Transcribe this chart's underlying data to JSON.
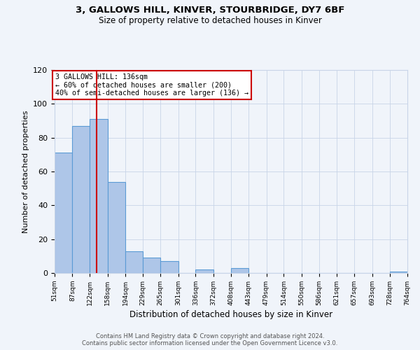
{
  "title": "3, GALLOWS HILL, KINVER, STOURBRIDGE, DY7 6BF",
  "subtitle": "Size of property relative to detached houses in Kinver",
  "xlabel": "Distribution of detached houses by size in Kinver",
  "ylabel": "Number of detached properties",
  "bin_edges": [
    51,
    87,
    122,
    158,
    194,
    229,
    265,
    301,
    336,
    372,
    408,
    443,
    479,
    514,
    550,
    586,
    621,
    657,
    693,
    728,
    764
  ],
  "bar_heights": [
    71,
    87,
    91,
    54,
    13,
    9,
    7,
    0,
    2,
    0,
    3,
    0,
    0,
    0,
    0,
    0,
    0,
    0,
    0,
    1
  ],
  "bar_color": "#aec6e8",
  "bar_edgecolor": "#5b9bd5",
  "bar_linewidth": 0.8,
  "property_line_x": 136,
  "property_line_color": "#cc0000",
  "ylim": [
    0,
    120
  ],
  "yticks": [
    0,
    20,
    40,
    60,
    80,
    100,
    120
  ],
  "annotation_title": "3 GALLOWS HILL: 136sqm",
  "annotation_line1": "← 60% of detached houses are smaller (200)",
  "annotation_line2": "40% of semi-detached houses are larger (136) →",
  "annotation_box_color": "#cc0000",
  "footer_line1": "Contains HM Land Registry data © Crown copyright and database right 2024.",
  "footer_line2": "Contains public sector information licensed under the Open Government Licence v3.0.",
  "background_color": "#f0f4fa",
  "grid_color": "#c8d4e8"
}
